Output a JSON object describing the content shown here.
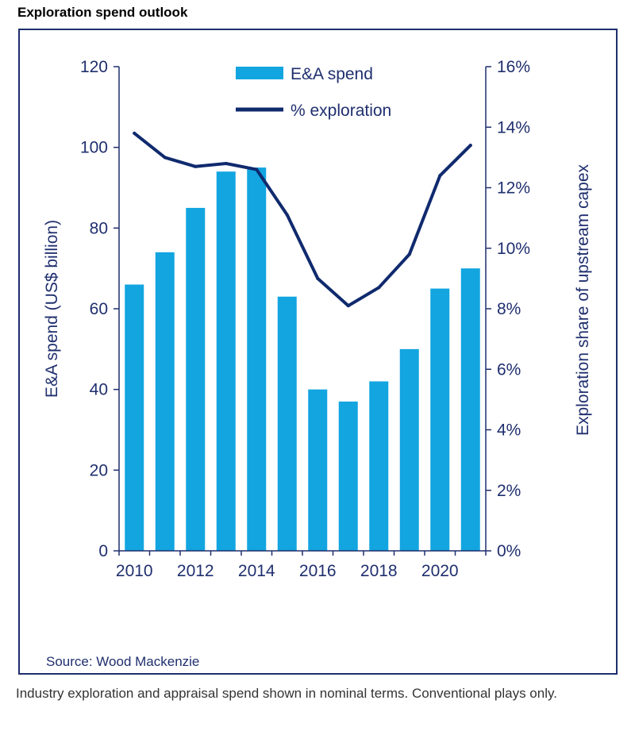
{
  "header": {
    "title": "Exploration spend outlook"
  },
  "chart_data": {
    "type": "bar",
    "title": "Exploration spend outlook",
    "categories": [
      "2010",
      "2011",
      "2012",
      "2013",
      "2014",
      "2015",
      "2016",
      "2017",
      "2018",
      "2019",
      "2020",
      "2021"
    ],
    "x_tick_labels": [
      "2010",
      "2012",
      "2014",
      "2016",
      "2018",
      "2020"
    ],
    "series": [
      {
        "name": "E&A spend",
        "type": "bar",
        "axis": "left",
        "color": "#12a5e0",
        "values": [
          66,
          74,
          85,
          94,
          95,
          63,
          40,
          37,
          42,
          50,
          65,
          70
        ]
      },
      {
        "name": "% exploration",
        "type": "line",
        "axis": "right",
        "color": "#102a6e",
        "values": [
          13.8,
          13.0,
          12.7,
          12.8,
          12.6,
          11.1,
          9.0,
          8.1,
          8.7,
          9.8,
          12.4,
          13.4
        ]
      }
    ],
    "ylabel": "E&A spend (US$ billion)",
    "ylim": [
      0,
      120
    ],
    "yticks": [
      "0",
      "20",
      "40",
      "60",
      "80",
      "100",
      "120"
    ],
    "y2label": "Exploration share of upstream capex",
    "y2lim": [
      0,
      16
    ],
    "y2ticks": [
      "0%",
      "2%",
      "4%",
      "6%",
      "8%",
      "10%",
      "12%",
      "14%",
      "16%"
    ],
    "legend": [
      "E&A spend",
      "% exploration"
    ],
    "legend_position": "top"
  },
  "footer": {
    "source": "Source: Wood Mackenzie",
    "caption": "Industry exploration and appraisal spend shown in nominal terms. Conventional plays only."
  }
}
